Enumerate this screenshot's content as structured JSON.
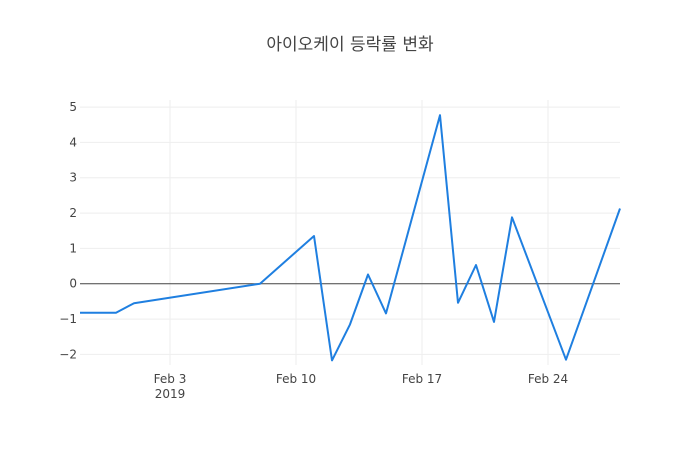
{
  "chart_data": {
    "type": "line",
    "title": "아이오케이 등락률 변화",
    "xlabel": "",
    "ylabel": "",
    "x_ticks": [
      {
        "date": "2019-02-03",
        "label": "Feb 3",
        "sublabel": "2019"
      },
      {
        "date": "2019-02-10",
        "label": "Feb 10",
        "sublabel": ""
      },
      {
        "date": "2019-02-17",
        "label": "Feb 17",
        "sublabel": ""
      },
      {
        "date": "2019-02-24",
        "label": "Feb 24",
        "sublabel": ""
      }
    ],
    "y_ticks": [
      5,
      4,
      3,
      2,
      1,
      0,
      -1,
      -2
    ],
    "y_tick_labels": [
      "5",
      "4",
      "3",
      "2",
      "1",
      "0",
      "−1",
      "−2"
    ],
    "xlim": [
      "2019-01-29",
      "2019-02-28"
    ],
    "ylim": [
      -2.3,
      5.2
    ],
    "grid": true,
    "zero_line": true,
    "color": "#1f7fe0",
    "series": [
      {
        "x": [
          "2019-01-29",
          "2019-01-31",
          "2019-02-01",
          "2019-02-08",
          "2019-02-11",
          "2019-02-12",
          "2019-02-13",
          "2019-02-14",
          "2019-02-15",
          "2019-02-18",
          "2019-02-19",
          "2019-02-20",
          "2019-02-21",
          "2019-02-22",
          "2019-02-25",
          "2019-02-28"
        ],
        "values": [
          -0.82,
          -0.82,
          -0.55,
          0.0,
          1.35,
          -2.17,
          -1.15,
          0.26,
          -0.84,
          4.77,
          -0.54,
          0.53,
          -1.08,
          1.88,
          -2.15,
          2.13
        ]
      }
    ]
  }
}
